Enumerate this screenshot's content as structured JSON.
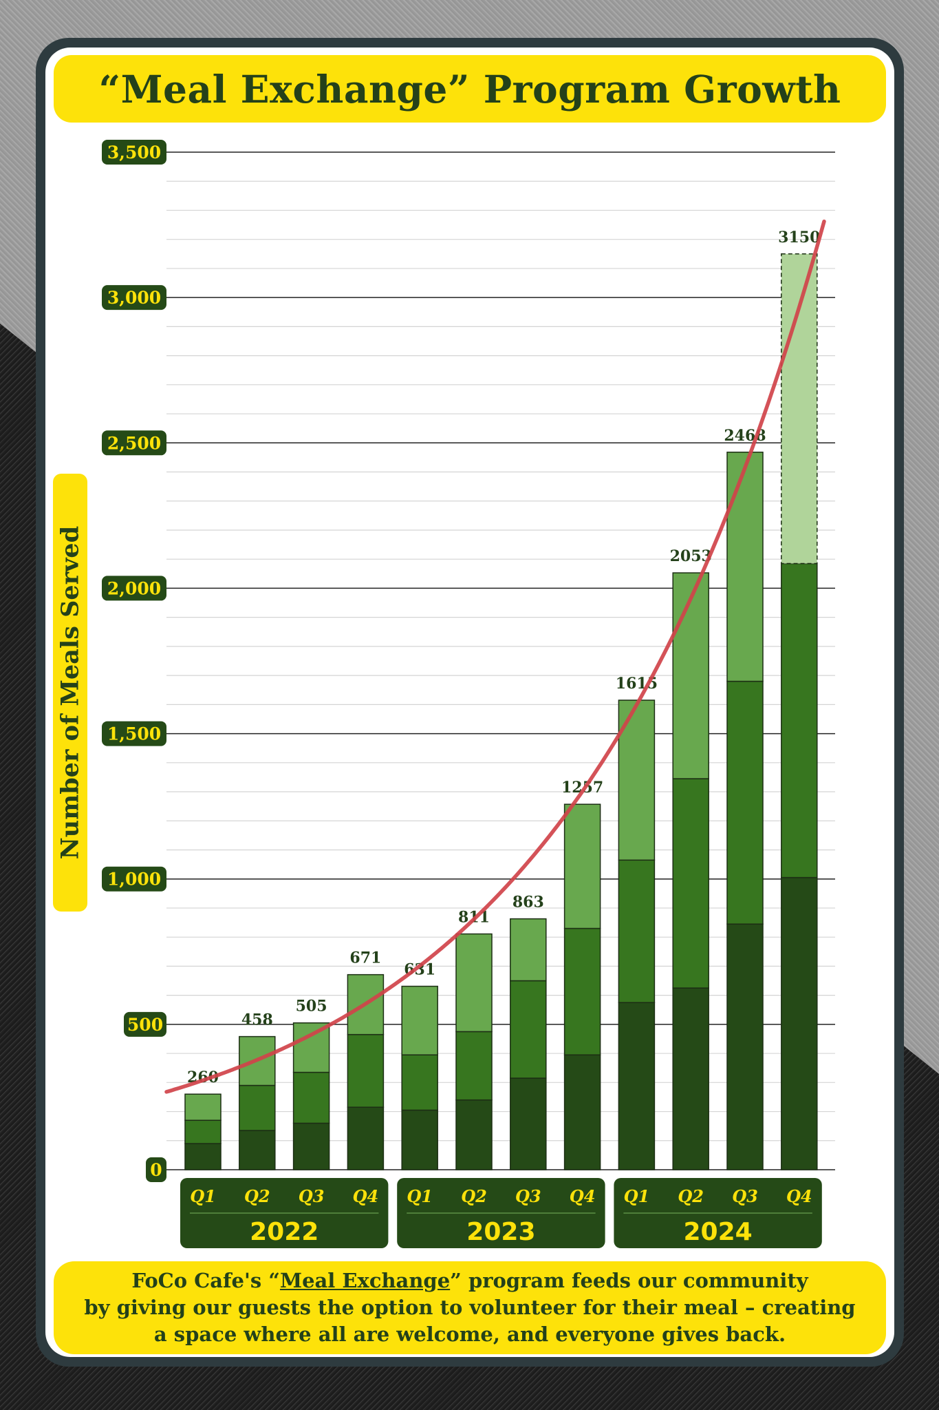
{
  "title": "“Meal Exchange” Program Growth",
  "colors": {
    "banner": "#fde20a",
    "dark_green": "#254a17",
    "mid_green": "#37761f",
    "light_green": "#68a84e",
    "projected_green": "#b0d49a",
    "trend_line": "#d0434a"
  },
  "chart_data": {
    "type": "bar",
    "stacked": true,
    "title": "“Meal Exchange” Program Growth",
    "ylabel": "Number of Meals Served",
    "ylim": [
      0,
      3500
    ],
    "yticks": [
      "0",
      "500",
      "1,000",
      "1,500",
      "2,000",
      "2,500",
      "3,000",
      "3,500"
    ],
    "quarters": [
      "Q1",
      "Q2",
      "Q3",
      "Q4",
      "Q1",
      "Q2",
      "Q3",
      "Q4",
      "Q1",
      "Q2",
      "Q3",
      "Q4"
    ],
    "years": [
      "2022",
      "2023",
      "2024"
    ],
    "totals": [
      260,
      458,
      505,
      671,
      631,
      811,
      863,
      1257,
      1615,
      2053,
      2468,
      3150
    ],
    "total_labels": [
      "260",
      "458",
      "505",
      "671",
      "631",
      "811",
      "863",
      "1257",
      "1615",
      "2053",
      "2468",
      "3150"
    ],
    "segments": [
      [
        90,
        170,
        260
      ],
      [
        135,
        290,
        458
      ],
      [
        160,
        335,
        505
      ],
      [
        215,
        465,
        671
      ],
      [
        205,
        395,
        631
      ],
      [
        240,
        475,
        811
      ],
      [
        315,
        650,
        863
      ],
      [
        395,
        830,
        1257
      ],
      [
        575,
        1065,
        1615
      ],
      [
        625,
        1345,
        2053
      ],
      [
        845,
        1680,
        2468
      ],
      [
        1005,
        2085,
        3150
      ]
    ],
    "projected_last": true,
    "trend": "exponential curve through bar tops",
    "grid": true
  },
  "footer": {
    "line1_pre": "FoCo Cafe's “",
    "line1_link": "Meal Exchange",
    "line1_post": "” program feeds our community",
    "line2": "by giving our guests the option to volunteer for their meal – creating",
    "line3": "a space where all are welcome, and everyone gives back."
  }
}
